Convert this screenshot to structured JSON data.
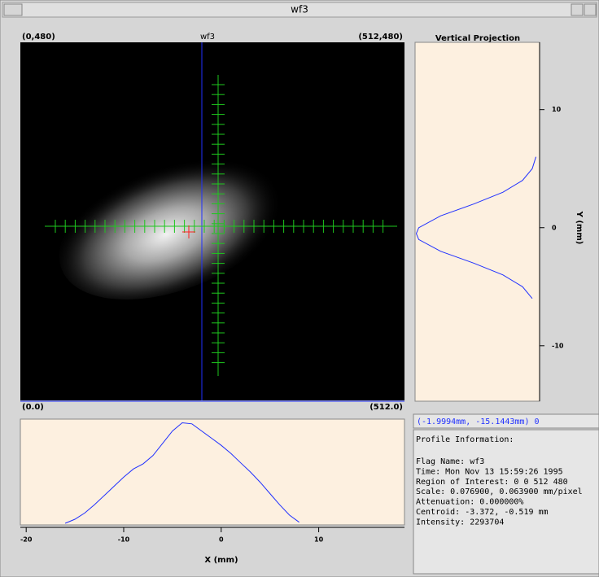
{
  "window": {
    "title": "wf3"
  },
  "image": {
    "title": "wf3",
    "corner_top_left": "(0,480)",
    "corner_top_right": "(512,480)",
    "corner_bottom_left": "(0.0)",
    "corner_bottom_right": "(512.0)"
  },
  "vertical_projection": {
    "title": "Vertical Projection",
    "axis_label": "Y (mm)",
    "ylim": [
      -14.7,
      15.7
    ],
    "yticks": [
      -10,
      0,
      10
    ],
    "xlim": [
      0,
      1
    ],
    "y": [
      -6,
      -5,
      -4,
      -3,
      -2,
      -1,
      -0.5,
      0,
      1,
      2,
      3,
      4,
      5,
      6
    ],
    "values": [
      0.04,
      0.12,
      0.28,
      0.52,
      0.79,
      0.97,
      0.99,
      0.97,
      0.79,
      0.52,
      0.28,
      0.12,
      0.04,
      0.01
    ]
  },
  "horizontal_projection": {
    "axis_label": "X (mm)",
    "xlim": [
      -20.6,
      18.8
    ],
    "xticks": [
      -20,
      -10,
      0,
      10
    ],
    "ylim": [
      0,
      1
    ],
    "x": [
      -16,
      -15,
      -14,
      -13,
      -12,
      -11,
      -10,
      -9,
      -8,
      -7,
      -6,
      -5,
      -4,
      -3,
      -2,
      -1,
      0,
      1,
      2,
      3,
      4,
      5,
      6,
      7,
      8
    ],
    "values": [
      0.0,
      0.04,
      0.1,
      0.18,
      0.27,
      0.36,
      0.45,
      0.53,
      0.58,
      0.66,
      0.78,
      0.9,
      0.98,
      0.97,
      0.9,
      0.83,
      0.76,
      0.68,
      0.59,
      0.5,
      0.4,
      0.29,
      0.18,
      0.08,
      0.01
    ]
  },
  "cursor_readout": "(-1.9994mm, -15.1443mm) 0",
  "profile_info": {
    "heading": "Profile Information:",
    "lines": [
      "Flag Name: wf3",
      "Time: Mon Nov 13 15:59:26 1995",
      "Region of Interest: 0 0 512 480",
      "Scale: 0.076900, 0.063900 mm/pixel",
      "Attenuation: 0.000000%",
      "Centroid: -3.372, -0.519 mm",
      "Intensity: 2293704"
    ]
  }
}
